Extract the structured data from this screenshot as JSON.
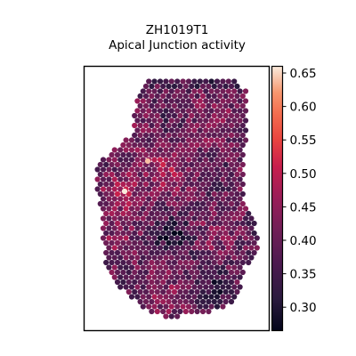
{
  "chart_data": {
    "type": "heatmap",
    "title_lines": [
      "ZH1019T1",
      "Apical Junction activity"
    ],
    "colormap": "rocket",
    "colorbar": {
      "range": [
        0.265,
        0.66
      ],
      "ticks": [
        0.3,
        0.35,
        0.4,
        0.45,
        0.5,
        0.55,
        0.6,
        0.65
      ],
      "tick_labels": [
        "0.30",
        "0.35",
        "0.40",
        "0.45",
        "0.50",
        "0.55",
        "0.60",
        "0.65"
      ]
    },
    "grid": false,
    "spot_shape": "hexagonal spatial transcriptomics spots"
  }
}
